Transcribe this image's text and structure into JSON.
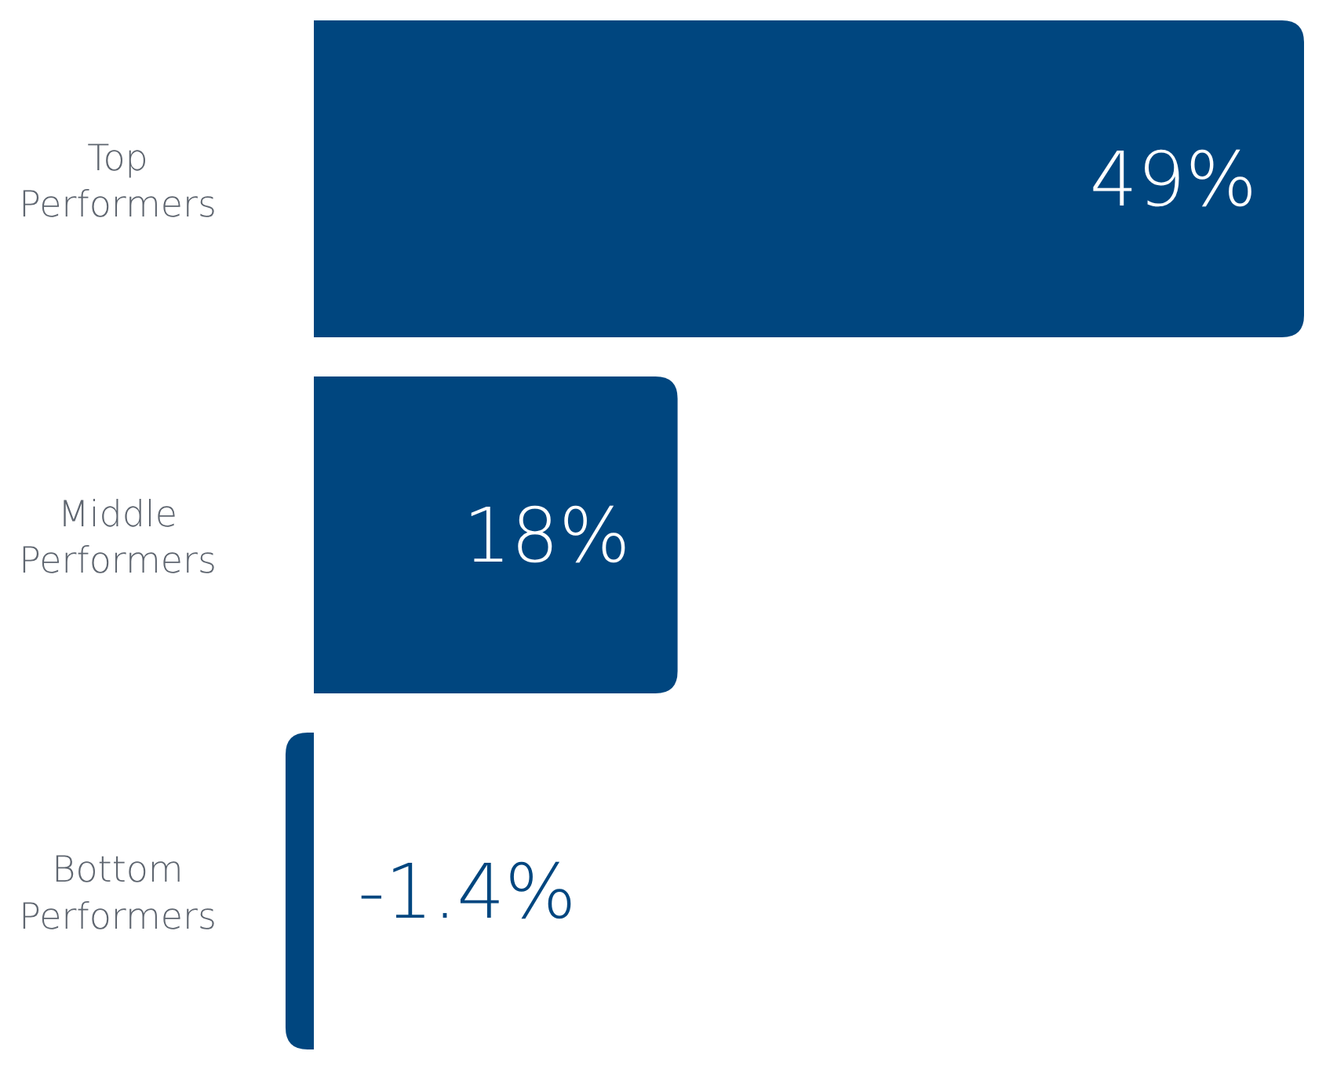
{
  "chart_data": {
    "type": "bar",
    "orientation": "horizontal",
    "categories": [
      "Top Performers",
      "Middle Performers",
      "Bottom Performers"
    ],
    "values": [
      49,
      18,
      -1.4
    ],
    "value_labels": [
      "49%",
      "18%",
      "-1.4%"
    ],
    "color": "#00467f"
  }
}
